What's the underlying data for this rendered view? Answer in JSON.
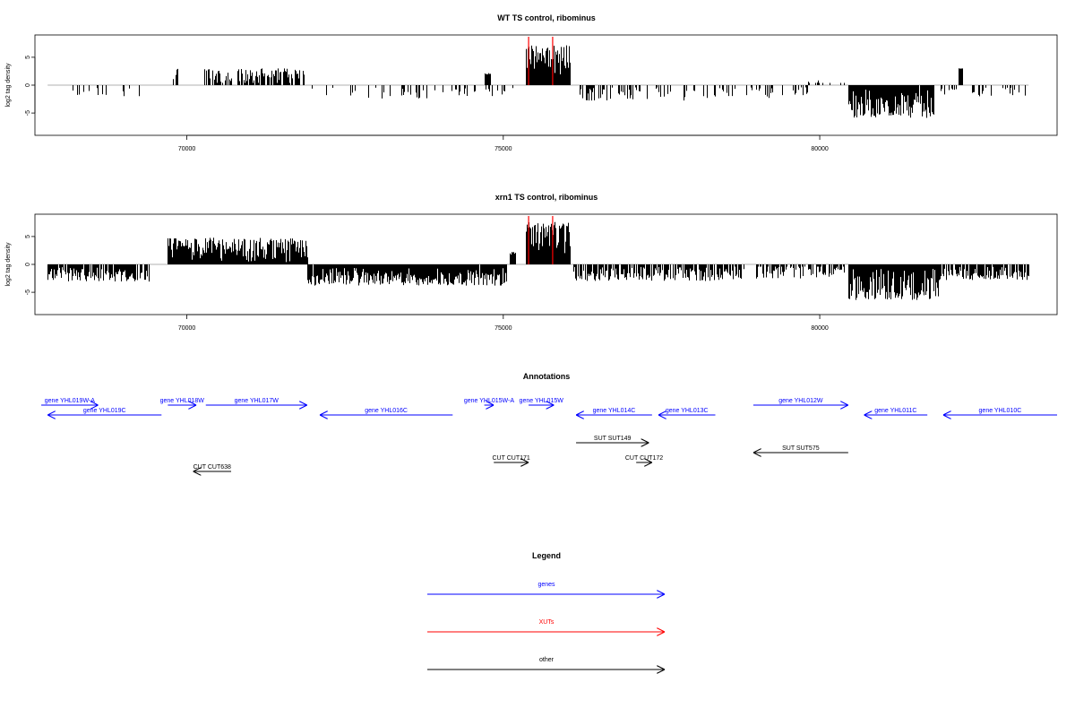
{
  "colors": {
    "gene": "#0000ff",
    "xut": "#ff0000",
    "other": "#000000",
    "bar": "#000000",
    "marker": "#ff0000",
    "baseline": "#999999"
  },
  "x_range": [
    67600,
    83750
  ],
  "chart_data": [
    {
      "type": "bar",
      "title": "WT TS control, ribominus",
      "ylabel": "log2 tag density",
      "xlim": [
        67600,
        83750
      ],
      "ylim": [
        -9,
        9
      ],
      "xticks": [
        70000,
        75000,
        80000
      ],
      "xtick_labels": [
        "70000",
        "75000",
        "80000"
      ],
      "yticks": [
        -5,
        0,
        5
      ],
      "ytick_labels": [
        "-5",
        "0",
        "5"
      ],
      "markers": [
        75400,
        75780
      ],
      "segments": [
        {
          "x0": 67800,
          "x1": 69300,
          "mean": -1.3,
          "amp": 0.9,
          "density": 0.1
        },
        {
          "x0": 69700,
          "x1": 69900,
          "mean": 2.0,
          "amp": 1.0,
          "density": 0.3
        },
        {
          "x0": 70250,
          "x1": 71850,
          "mean": 1.7,
          "amp": 1.4,
          "density": 0.55
        },
        {
          "x0": 71900,
          "x1": 73900,
          "mean": -1.4,
          "amp": 1.0,
          "density": 0.1
        },
        {
          "x0": 73900,
          "x1": 75250,
          "mean": -1.2,
          "amp": 0.8,
          "density": 0.14
        },
        {
          "x0": 74700,
          "x1": 74800,
          "mean": 2.0,
          "amp": 0.2,
          "density": 1.0
        },
        {
          "x0": 75350,
          "x1": 76050,
          "mean": 4.5,
          "amp": 2.8,
          "density": 1.0
        },
        {
          "x0": 76150,
          "x1": 78000,
          "mean": -1.6,
          "amp": 1.2,
          "density": 0.22
        },
        {
          "x0": 78000,
          "x1": 79800,
          "mean": -1.3,
          "amp": 1.0,
          "density": 0.12
        },
        {
          "x0": 79800,
          "x1": 80400,
          "mean": 0.5,
          "amp": 2.0,
          "density": 0.2
        },
        {
          "x0": 80450,
          "x1": 81800,
          "mean": -3.3,
          "amp": 2.6,
          "density": 0.9
        },
        {
          "x0": 81900,
          "x1": 83300,
          "mean": -1.2,
          "amp": 0.8,
          "density": 0.12
        },
        {
          "x0": 82200,
          "x1": 82250,
          "mean": 3.0,
          "amp": 0.1,
          "density": 1.0
        }
      ]
    },
    {
      "type": "bar",
      "title": "xrn1 TS control, ribominus",
      "ylabel": "log2 tag density",
      "xlim": [
        67600,
        83750
      ],
      "ylim": [
        -9,
        9
      ],
      "xticks": [
        70000,
        75000,
        80000
      ],
      "xtick_labels": [
        "70000",
        "75000",
        "80000"
      ],
      "yticks": [
        -5,
        0,
        5
      ],
      "ytick_labels": [
        "-5",
        "0",
        "5"
      ],
      "markers": [
        75400,
        75780
      ],
      "segments": [
        {
          "x0": 67800,
          "x1": 69400,
          "mean": -1.8,
          "amp": 1.3,
          "density": 0.8
        },
        {
          "x0": 69700,
          "x1": 71900,
          "mean": 2.6,
          "amp": 2.2,
          "density": 0.95
        },
        {
          "x0": 71900,
          "x1": 75050,
          "mean": -2.2,
          "amp": 1.6,
          "density": 0.95
        },
        {
          "x0": 75100,
          "x1": 75180,
          "mean": 2.0,
          "amp": 0.3,
          "density": 1.0
        },
        {
          "x0": 75350,
          "x1": 76050,
          "mean": 4.8,
          "amp": 2.8,
          "density": 1.0
        },
        {
          "x0": 76100,
          "x1": 78800,
          "mean": -1.7,
          "amp": 1.3,
          "density": 0.55
        },
        {
          "x0": 79000,
          "x1": 80400,
          "mean": -1.0,
          "amp": 1.6,
          "density": 0.5
        },
        {
          "x0": 80450,
          "x1": 81900,
          "mean": -3.6,
          "amp": 2.8,
          "density": 0.95
        },
        {
          "x0": 81900,
          "x1": 83300,
          "mean": -1.6,
          "amp": 1.2,
          "density": 0.6
        }
      ]
    }
  ],
  "annotations": {
    "title": "Annotations",
    "features": [
      {
        "label": "gene YHL019W-A",
        "x0": 67700,
        "x1": 68600,
        "dir": "right",
        "row": 0,
        "kind": "gene"
      },
      {
        "label": "gene YHL019C",
        "x0": 67800,
        "x1": 69600,
        "dir": "left",
        "row": 1,
        "kind": "gene"
      },
      {
        "label": "gene YHL018W",
        "x0": 69700,
        "x1": 70150,
        "dir": "right",
        "row": 0,
        "kind": "gene"
      },
      {
        "label": "gene YHL017W",
        "x0": 70300,
        "x1": 71900,
        "dir": "right",
        "row": 0,
        "kind": "gene"
      },
      {
        "label": "gene YHL016C",
        "x0": 72100,
        "x1": 74200,
        "dir": "left",
        "row": 1,
        "kind": "gene"
      },
      {
        "label": "gene YHL015W-A",
        "x0": 74700,
        "x1": 74850,
        "dir": "right",
        "row": 0,
        "kind": "gene"
      },
      {
        "label": "gene YHL015W",
        "x0": 75400,
        "x1": 75800,
        "dir": "right",
        "row": 0,
        "kind": "gene"
      },
      {
        "label": "gene YHL014C",
        "x0": 76150,
        "x1": 77350,
        "dir": "left",
        "row": 1,
        "kind": "gene"
      },
      {
        "label": "gene YHL013C",
        "x0": 77450,
        "x1": 78350,
        "dir": "left",
        "row": 1,
        "kind": "gene"
      },
      {
        "label": "gene YHL012W",
        "x0": 78950,
        "x1": 80450,
        "dir": "right",
        "row": 0,
        "kind": "gene"
      },
      {
        "label": "gene YHL011C",
        "x0": 80700,
        "x1": 81700,
        "dir": "left",
        "row": 1,
        "kind": "gene"
      },
      {
        "label": "gene YHL010C",
        "x0": 81950,
        "x1": 83750,
        "dir": "left",
        "row": 1,
        "kind": "gene"
      },
      {
        "label": "SUT SUT149",
        "x0": 76150,
        "x1": 77300,
        "dir": "right",
        "row": 2,
        "kind": "other"
      },
      {
        "label": "SUT SUT575",
        "x0": 78950,
        "x1": 80450,
        "dir": "left",
        "row": 3,
        "kind": "other"
      },
      {
        "label": "CUT CUT171",
        "x0": 74850,
        "x1": 75400,
        "dir": "right",
        "row": 4,
        "kind": "other"
      },
      {
        "label": "CUT CUT172",
        "x0": 77100,
        "x1": 77350,
        "dir": "right",
        "row": 4,
        "kind": "other"
      },
      {
        "label": "CUT CUT638",
        "x0": 70100,
        "x1": 70700,
        "dir": "left",
        "row": 5,
        "kind": "other"
      }
    ]
  },
  "legend": {
    "title": "Legend",
    "items": [
      {
        "label": "genes",
        "kind": "gene"
      },
      {
        "label": "XUTs",
        "kind": "xut"
      },
      {
        "label": "other",
        "kind": "other"
      }
    ]
  }
}
